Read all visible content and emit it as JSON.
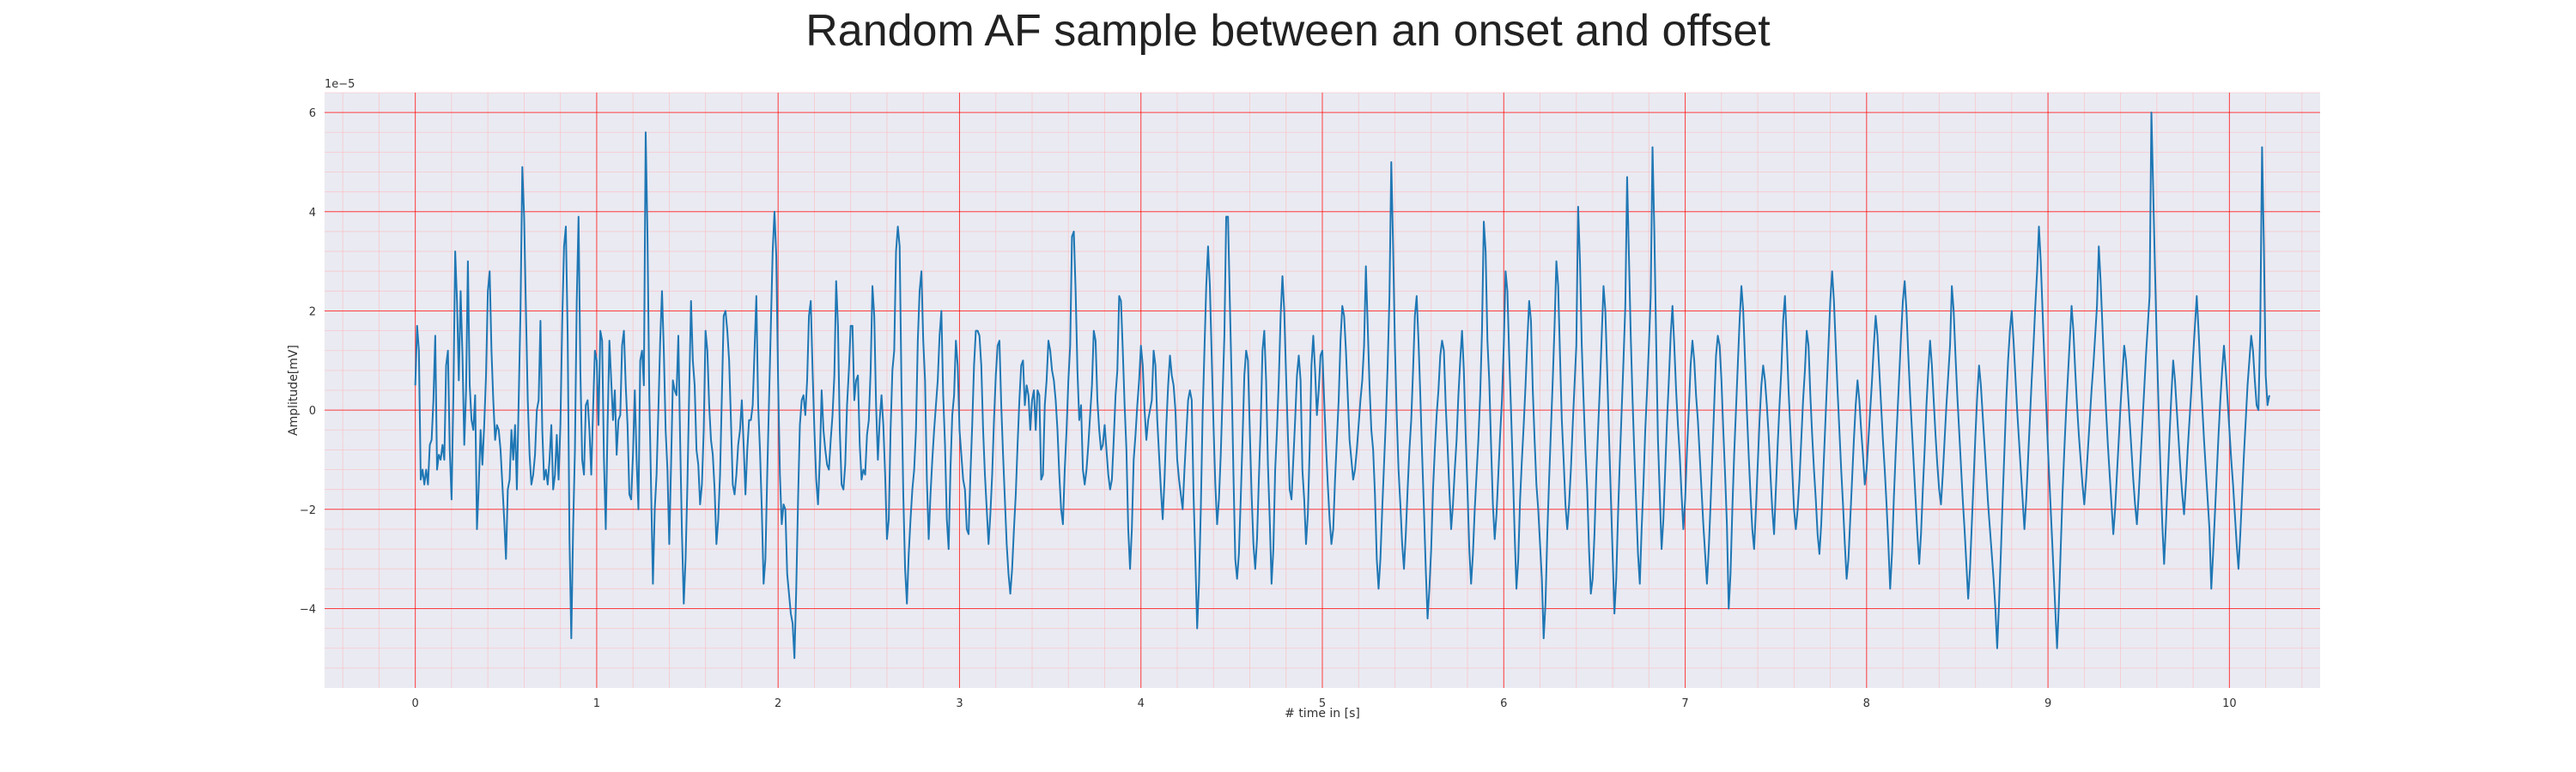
{
  "chart_data": {
    "type": "line",
    "title": "Random AF sample between an onset and offset",
    "xlabel": "# time in [s]",
    "ylabel": "Amplitude[mV]",
    "y_scale_label": "1e−5",
    "xlim": [
      -0.5,
      10.5
    ],
    "ylim": [
      -5.6,
      6.4
    ],
    "x_ticks": [
      0,
      1,
      2,
      3,
      4,
      5,
      6,
      7,
      8,
      9,
      10
    ],
    "y_ticks": [
      -4,
      -2,
      0,
      2,
      4,
      6
    ],
    "grid": true,
    "minor_grid": true,
    "colors": {
      "background": "#eaeaf2",
      "major_grid": "#ff0000",
      "minor_grid": "#ffb3b3",
      "line": "#1f77b4"
    },
    "series": [
      {
        "x_start": 0,
        "x_step": 0.01,
        "values": [
          0.5,
          1.7,
          1.2,
          -1.4,
          -1.2,
          -1.5,
          -1.2,
          -1.5,
          -0.7,
          -0.6,
          0.2,
          1.5,
          -1.2,
          -0.9,
          -1.0,
          -0.7,
          -1.0,
          0.9,
          1.2,
          -0.8,
          -1.8,
          0.3,
          3.2,
          2.2,
          0.6,
          2.4,
          1.1,
          -0.7,
          0.4,
          3.0,
          0.5,
          -0.2,
          -0.4,
          0.3,
          -2.4,
          -1.5,
          -0.4,
          -1.1,
          -0.3,
          0.7,
          2.4,
          2.8,
          1.2,
          0.2,
          -0.6,
          -0.3,
          -0.4,
          -0.8,
          -1.5,
          -2.2,
          -3.0,
          -1.6,
          -1.4,
          -0.4,
          -1.0,
          -0.3,
          -1.6,
          0.2,
          2.0,
          4.9,
          3.9,
          2.0,
          0.2,
          -0.9,
          -1.5,
          -1.3,
          -0.9,
          0.0,
          0.2,
          1.8,
          -0.4,
          -1.4,
          -1.2,
          -1.5,
          -1.0,
          -0.3,
          -1.6,
          -1.3,
          -0.5,
          -1.4,
          -0.3,
          1.8,
          3.3,
          3.7,
          1.5,
          -2.6,
          -4.6,
          -2.4,
          -0.8,
          2.2,
          3.9,
          0.8,
          -1.0,
          -1.3,
          0.1,
          0.2,
          -0.4,
          -1.3,
          0.0,
          1.2,
          1.0,
          -0.3,
          1.6,
          1.4,
          -1.0,
          -2.4,
          -0.3,
          1.4,
          0.6,
          -0.2,
          0.4,
          -0.9,
          -0.2,
          -0.1,
          1.3,
          1.6,
          0.5,
          -0.3,
          -1.7,
          -1.8,
          -0.9,
          0.4,
          -1.0,
          -2.0,
          1.0,
          1.2,
          0.5,
          5.6,
          3.5,
          0.3,
          -1.6,
          -3.5,
          -2.0,
          -1.3,
          0.0,
          1.4,
          2.4,
          1.2,
          -0.4,
          -1.2,
          -2.7,
          -1.1,
          0.6,
          0.4,
          0.3,
          1.5,
          -0.6,
          -2.5,
          -3.9,
          -3.0,
          -1.5,
          0.4,
          2.2,
          1.0,
          0.5,
          -0.8,
          -1.1,
          -1.9,
          -1.5,
          -0.4,
          1.6,
          1.2,
          0.1,
          -0.6,
          -0.9,
          -1.6,
          -2.7,
          -2.2,
          -1.3,
          0.3,
          1.9,
          2.0,
          1.6,
          1.0,
          -0.2,
          -1.5,
          -1.7,
          -1.3,
          -0.7,
          -0.4,
          0.2,
          -0.7,
          -1.7,
          -0.8,
          -0.2,
          -0.2,
          0.1,
          1.2,
          2.3,
          0.1,
          -0.8,
          -2.0,
          -3.5,
          -3.0,
          -1.3,
          0.2,
          1.7,
          3.2,
          4.0,
          3.1,
          0.6,
          -1.3,
          -2.3,
          -1.9,
          -2.0,
          -3.3,
          -3.7,
          -4.1,
          -4.3,
          -5.0,
          -3.6,
          -1.8,
          -0.3,
          0.2,
          0.3,
          -0.1,
          0.6,
          1.9,
          2.2,
          0.8,
          -0.4,
          -1.4,
          -1.9,
          -1.0,
          0.4,
          -0.4,
          -0.8,
          -1.1,
          -1.2,
          -0.6,
          -0.1,
          0.7,
          2.6,
          1.7,
          -0.4,
          -1.5,
          -1.6,
          -1.1,
          0.1,
          0.8,
          1.7,
          1.7,
          0.2,
          0.6,
          0.7,
          -0.7,
          -1.4,
          -1.2,
          -1.3,
          -0.5,
          -0.2,
          0.8,
          2.5,
          1.9,
          0.1,
          -1.0,
          -0.2,
          0.3,
          -0.3,
          -1.3,
          -2.6,
          -2.2,
          -0.4,
          0.8,
          1.2,
          3.2,
          3.7,
          3.3,
          0.5,
          -1.7,
          -3.2,
          -3.9,
          -2.9,
          -2.2,
          -1.6,
          -1.2,
          -0.4,
          1.4,
          2.4,
          2.8,
          1.4,
          0.6,
          -1.4,
          -2.6,
          -1.7,
          -1.0,
          -0.4,
          0.1,
          0.6,
          1.5,
          2.0,
          0.3,
          -0.7,
          -2.2,
          -2.8,
          -1.2,
          -0.1,
          0.3,
          1.4,
          0.9,
          -0.4,
          -0.9,
          -1.4,
          -1.6,
          -2.4,
          -2.5,
          -1.3,
          -0.3,
          0.9,
          1.6,
          1.6,
          1.5,
          0.9,
          -0.4,
          -1.3,
          -2.0,
          -2.7,
          -2.1,
          -1.3,
          -0.2,
          0.7,
          1.3,
          1.4,
          0.1,
          -0.9,
          -1.8,
          -2.7,
          -3.3,
          -3.7,
          -3.2,
          -2.4,
          -1.7,
          -0.7,
          0.2,
          0.9,
          1.0,
          0.1,
          0.5,
          0.3,
          -0.4,
          0.2,
          0.4,
          -0.4,
          0.4,
          0.3,
          -1.4,
          -1.3,
          0.1,
          0.6,
          1.4,
          1.2,
          0.8,
          0.6,
          0.2,
          -0.4,
          -1.3,
          -2.0,
          -2.3,
          -1.2,
          -0.4,
          0.6,
          1.3,
          3.5,
          3.6,
          2.4,
          0.8,
          -0.2,
          0.1,
          -1.2,
          -1.5,
          -1.2,
          -0.7,
          -0.1,
          0.5,
          1.6,
          1.4,
          0.2,
          -0.4,
          -0.8,
          -0.7,
          -0.3,
          -0.8,
          -1.3,
          -1.6,
          -1.4,
          -0.6,
          0.3,
          0.8,
          2.3,
          2.2,
          1.2,
          0.1,
          -0.8,
          -2.4,
          -3.2,
          -2.4,
          -1.0,
          -0.5,
          0.1,
          0.6,
          1.3,
          0.9,
          0.0,
          -0.6,
          -0.2,
          0.0,
          0.2,
          1.2,
          0.9,
          -0.2,
          -0.9,
          -1.6,
          -2.2,
          -1.4,
          -0.3,
          0.5,
          1.1,
          0.7,
          0.5,
          0.0,
          -1.0,
          -1.4,
          -1.7,
          -2.0,
          -1.2,
          -0.5,
          0.2,
          0.4,
          0.2,
          -1.7,
          -3.0,
          -4.4,
          -3.5,
          -2.0,
          -0.1,
          1.2,
          2.5,
          3.3,
          2.5,
          1.1,
          -0.3,
          -1.5,
          -2.3,
          -1.8,
          -0.9,
          0.3,
          1.5,
          3.9,
          3.9,
          2.2,
          0.6,
          -1.3,
          -3.0,
          -3.4,
          -2.9,
          -1.8,
          -0.6,
          0.7,
          1.2,
          1.0,
          -0.4,
          -1.7,
          -2.7,
          -3.2,
          -2.6,
          -1.4,
          -0.3,
          1.2,
          1.6,
          0.6,
          -1.1,
          -2.2,
          -3.5,
          -2.8,
          -1.2,
          -0.4,
          0.6,
          1.9,
          2.7,
          2.0,
          0.7,
          -0.5,
          -1.6,
          -1.8,
          -1.0,
          -0.2,
          0.7,
          1.1,
          0.6,
          -1.2,
          -1.8,
          -2.7,
          -2.1,
          -0.8,
          0.9,
          1.5,
          0.8,
          -0.1,
          0.4,
          1.1,
          1.2,
          0.2,
          -0.7,
          -1.5,
          -2.2,
          -2.7,
          -2.4,
          -1.4,
          -0.6,
          0.2,
          1.4,
          2.1,
          1.9,
          1.2,
          0.3,
          -0.6,
          -1.0,
          -1.4,
          -1.2,
          -0.8,
          -0.3,
          0.2,
          0.6,
          1.3,
          2.9,
          1.7,
          0.5,
          -0.4,
          -0.8,
          -1.7,
          -3.0,
          -3.6,
          -3.0,
          -2.0,
          -1.1,
          -0.2,
          0.9,
          2.3,
          5.0,
          3.3,
          1.3,
          -0.1,
          -1.2,
          -1.9,
          -2.7,
          -3.2,
          -2.5,
          -1.6,
          -0.8,
          -0.2,
          0.8,
          1.9,
          2.3,
          1.4,
          0.3,
          -0.9,
          -2.0,
          -3.2,
          -4.2,
          -3.6,
          -2.8,
          -1.6,
          -0.8,
          -0.1,
          0.4,
          1.1,
          1.4,
          1.2,
          0.1,
          -0.7,
          -1.6,
          -2.4,
          -1.9,
          -1.2,
          -0.6,
          0.3,
          1.0,
          1.6,
          0.8,
          -0.5,
          -1.6,
          -2.8,
          -3.5,
          -2.9,
          -2.0,
          -1.3,
          -0.6,
          0.3,
          1.6,
          3.8,
          3.2,
          1.4,
          0.6,
          -0.7,
          -1.9,
          -2.6,
          -2.1,
          -1.3,
          -0.5,
          0.2,
          1.3,
          2.8,
          2.4,
          1.1,
          0.0,
          -1.2,
          -2.5,
          -3.6,
          -3.0,
          -1.8,
          -1.0,
          -0.3,
          0.5,
          1.4,
          2.2,
          1.8,
          0.4,
          -0.6,
          -1.5,
          -2.0,
          -2.7,
          -3.4,
          -4.6,
          -3.9,
          -2.5,
          -1.4,
          -0.4,
          0.6,
          1.7,
          3.0,
          2.5,
          1.1,
          -0.2,
          -1.0,
          -1.9,
          -2.4,
          -1.9,
          -1.2,
          -0.3,
          0.5,
          1.3,
          4.1,
          3.0,
          1.3,
          0.2,
          -0.8,
          -1.6,
          -2.8,
          -3.7,
          -3.4,
          -2.5,
          -1.3,
          -0.4,
          0.5,
          1.5,
          2.5,
          2.0,
          0.8,
          -0.5,
          -1.7,
          -2.9,
          -4.1,
          -3.4,
          -2.1,
          -1.0,
          0.0,
          1.0,
          2.1,
          4.7,
          3.1,
          1.5,
          0.2,
          -0.9,
          -1.9,
          -2.9,
          -3.5,
          -2.4,
          -1.5,
          -0.4,
          0.4,
          1.3,
          2.3,
          5.3,
          3.6,
          1.4,
          -0.6,
          -1.7,
          -2.8,
          -2.2,
          -1.2,
          -0.2,
          0.6,
          1.5,
          2.1,
          1.3,
          0.4,
          -0.3,
          -0.9,
          -1.7,
          -2.4,
          -1.8,
          -0.8,
          0.0,
          0.9,
          1.4,
          1.0,
          0.3,
          -0.2,
          -0.9,
          -1.6,
          -2.3,
          -2.9,
          -3.5,
          -2.8,
          -1.9,
          -0.9,
          0.1,
          1.1,
          1.5,
          1.3,
          0.6,
          -0.4,
          -1.3,
          -2.3,
          -4.0,
          -3.3,
          -2.0,
          -0.9,
          0.0,
          0.9,
          1.8,
          2.5,
          2.0,
          1.0,
          0.0,
          -0.9,
          -1.7,
          -2.4,
          -2.8,
          -2.0,
          -1.1,
          -0.2,
          0.5,
          0.9,
          0.6,
          0.1,
          -0.5,
          -1.3,
          -2.0,
          -2.5,
          -1.6,
          -0.7,
          0.1,
          0.8,
          1.8,
          2.3,
          1.4,
          0.4,
          -0.4,
          -1.2,
          -2.0,
          -2.4,
          -2.0,
          -1.4,
          -0.6,
          0.2,
          0.8,
          1.6,
          1.3,
          0.3,
          -0.5,
          -1.2,
          -1.8,
          -2.5,
          -2.9,
          -2.3,
          -1.4,
          -0.5,
          0.4,
          1.3,
          2.2,
          2.8,
          2.2,
          1.3,
          0.4,
          -0.4,
          -1.2,
          -1.9,
          -2.7,
          -3.4,
          -3.0,
          -2.2,
          -1.4,
          -0.6,
          0.1,
          0.6,
          0.2,
          -0.4,
          -0.9,
          -1.5,
          -1.2,
          -0.6,
          0.0,
          0.6,
          1.3,
          1.9,
          1.5,
          0.8,
          0.1,
          -0.6,
          -1.2,
          -1.9,
          -2.7,
          -3.6,
          -2.9,
          -1.8,
          -0.9,
          -0.1,
          0.7,
          1.5,
          2.2,
          2.6,
          2.0,
          1.1,
          0.3,
          -0.4,
          -1.1,
          -1.8,
          -2.5,
          -3.1,
          -2.5,
          -1.6,
          -0.8,
          0.1,
          0.8,
          1.4,
          0.9,
          0.2,
          -0.5,
          -1.1,
          -1.6,
          -1.9,
          -1.3,
          -0.6,
          0.1,
          0.7,
          1.3,
          2.5,
          2.0,
          1.1,
          0.3,
          -0.4,
          -1.1,
          -1.8,
          -2.4,
          -3.1,
          -3.8,
          -3.2,
          -2.3,
          -1.4,
          -0.5,
          0.3,
          0.9,
          0.5,
          -0.1,
          -0.7,
          -1.3,
          -1.9,
          -2.4,
          -2.9,
          -3.4,
          -4.0,
          -4.8,
          -3.9,
          -2.9,
          -1.8,
          -0.8,
          0.2,
          1.0,
          1.6,
          2.0,
          1.4,
          0.7,
          0.0,
          -0.6,
          -1.2,
          -1.8,
          -2.4,
          -1.8,
          -1.0,
          -0.2,
          0.6,
          1.3,
          2.1,
          2.8,
          3.7,
          3.0,
          2.0,
          1.0,
          0.1,
          -0.8,
          -1.6,
          -2.4,
          -3.2,
          -4.0,
          -4.8,
          -3.9,
          -2.8,
          -1.7,
          -0.8,
          0.0,
          0.7,
          1.4,
          2.1,
          1.6,
          0.8,
          0.1,
          -0.5,
          -1.0,
          -1.5,
          -1.9,
          -1.4,
          -0.8,
          -0.2,
          0.4,
          0.9,
          1.5,
          2.1,
          3.3,
          2.6,
          1.7,
          0.8,
          0.0,
          -0.7,
          -1.3,
          -1.9,
          -2.5,
          -2.0,
          -1.3,
          -0.6,
          0.1,
          0.7,
          1.3,
          1.0,
          0.4,
          -0.2,
          -0.8,
          -1.4,
          -1.9,
          -2.3,
          -1.7,
          -1.0,
          -0.3,
          0.4,
          1.1,
          1.7,
          2.3,
          6.0,
          4.4,
          2.8,
          1.3,
          0.0,
          -1.2,
          -2.3,
          -3.1,
          -2.3,
          -1.4,
          -0.5,
          0.3,
          1.0,
          0.6,
          0.0,
          -0.6,
          -1.2,
          -1.7,
          -2.1,
          -1.5,
          -0.8,
          -0.2,
          0.4,
          1.1,
          1.7,
          2.3,
          1.6,
          0.8,
          0.1,
          -0.6,
          -1.2,
          -1.8,
          -2.4,
          -3.6,
          -2.9,
          -2.1,
          -1.3,
          -0.5,
          0.2,
          0.8,
          1.3,
          0.8,
          0.2,
          -0.4,
          -1.0,
          -1.5,
          -2.1,
          -2.7,
          -3.2,
          -2.5,
          -1.7,
          -0.9,
          -0.2,
          0.5,
          1.0,
          1.5,
          1.2,
          0.6,
          0.1,
          0.0,
          1.7,
          5.3,
          3.3,
          0.7,
          0.1,
          0.3
        ]
      }
    ]
  }
}
